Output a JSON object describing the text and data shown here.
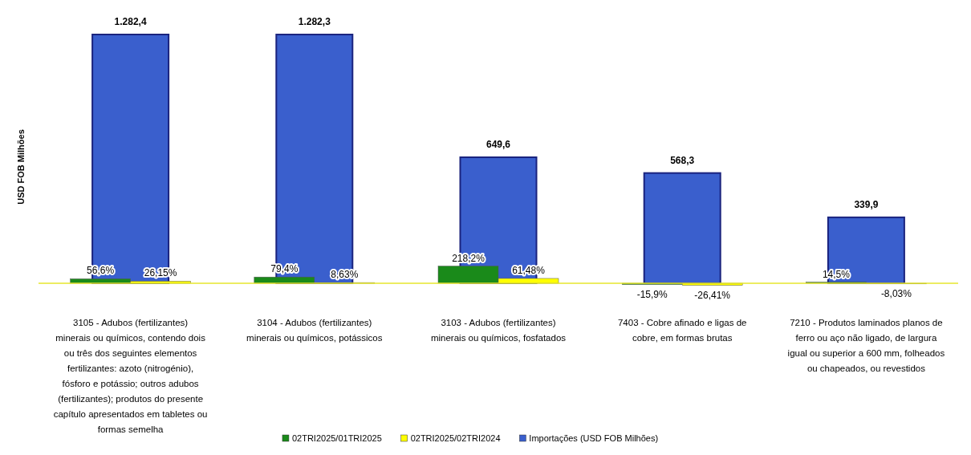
{
  "chart_data": {
    "type": "bar",
    "ylabel": "USD FOB Milhões",
    "categories": [
      "3105 - Adubos (fertilizantes) minerais ou químicos, contendo dois ou três dos seguintes elementos fertilizantes: azoto (nitrogénio), fósforo e potássio; outros adubos (fertilizantes); produtos do presente capítulo apresentados em tabletes ou formas semelha",
      "3104 - Adubos (fertilizantes) minerais ou químicos, potássicos",
      "3103 - Adubos (fertilizantes) minerais ou químicos, fosfatados",
      "7403 - Cobre afinado e ligas de cobre, em formas brutas",
      "7210 - Produtos laminados planos de ferro ou aço não ligado, de largura igual ou superior a 600 mm, folheados ou chapeados, ou revestidos"
    ],
    "series": [
      {
        "name": "02TRI2025/01TRI2025",
        "color": "#1a8a1a",
        "axis": "y2",
        "values": [
          56.6,
          79.4,
          218.2,
          -15.9,
          14.5
        ],
        "value_labels": [
          "56,6%",
          "79,4%",
          "218,2%",
          "-15,9%",
          "14,5%"
        ]
      },
      {
        "name": "02TRI2025/02TRI2024",
        "color": "#ffff00",
        "axis": "y2",
        "values": [
          26.15,
          8.63,
          61.48,
          -26.41,
          -8.03
        ],
        "value_labels": [
          "26,15%",
          "8,63%",
          "61,48%",
          "-26,41%",
          "-8,03%"
        ]
      },
      {
        "name": "Importações (USD FOB Milhões)",
        "color": "#3a5fcd",
        "values": [
          1282.4,
          1282.3,
          649.6,
          568.3,
          339.9
        ],
        "value_labels": [
          "1.282,4",
          "1.282,3",
          "649,6",
          "568,3",
          "339,9"
        ]
      }
    ],
    "legend": "bottom"
  }
}
